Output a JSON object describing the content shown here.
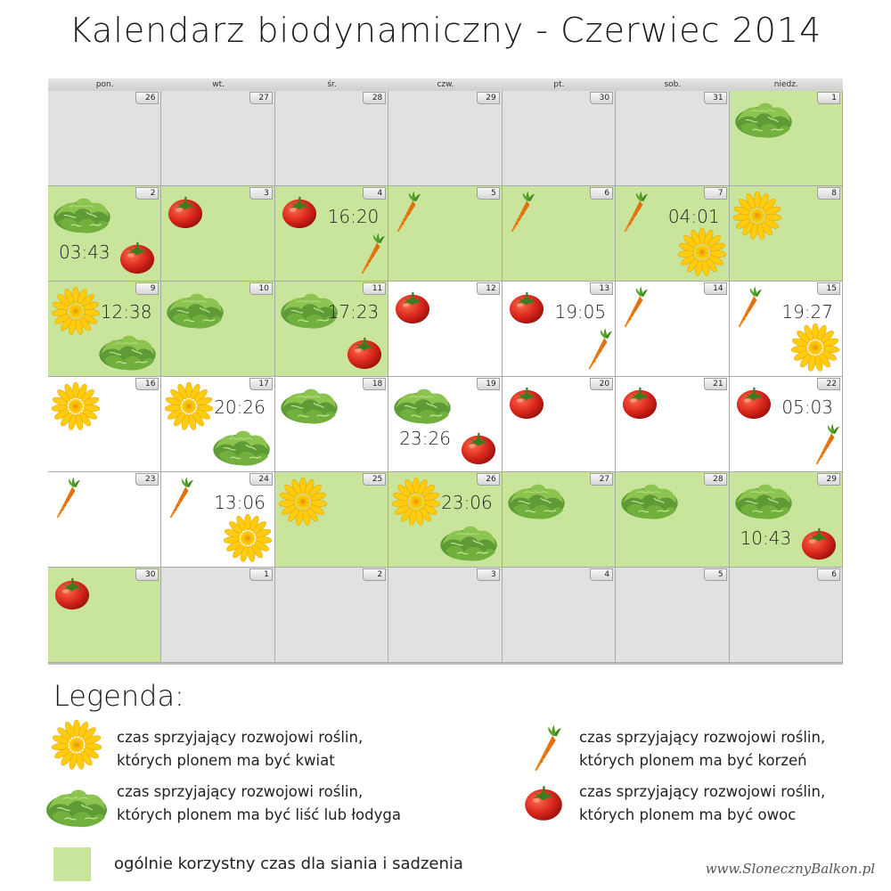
{
  "title": "Kalendarz biodynamiczny - Czerwiec 2014",
  "colors": {
    "green": "#c8e59b",
    "grey": "#e1e1e1",
    "white": "#ffffff"
  },
  "weekdays": [
    "pon.",
    "wt.",
    "śr.",
    "czw.",
    "pt.",
    "sob.",
    "niedz."
  ],
  "weeks": [
    [
      {
        "day": "26",
        "bg": "grey",
        "icons": [],
        "time": ""
      },
      {
        "day": "27",
        "bg": "grey",
        "icons": [],
        "time": ""
      },
      {
        "day": "28",
        "bg": "grey",
        "icons": [],
        "time": ""
      },
      {
        "day": "29",
        "bg": "grey",
        "icons": [],
        "time": ""
      },
      {
        "day": "30",
        "bg": "grey",
        "icons": [],
        "time": ""
      },
      {
        "day": "31",
        "bg": "grey",
        "icons": [],
        "time": ""
      },
      {
        "day": "1",
        "bg": "green",
        "icons": [
          "lettuce-icon"
        ],
        "time": ""
      }
    ],
    [
      {
        "day": "2",
        "bg": "green",
        "icons": [
          "lettuce-icon",
          "tomato-icon"
        ],
        "time": "03:43"
      },
      {
        "day": "3",
        "bg": "green",
        "icons": [
          "tomato-icon"
        ],
        "time": ""
      },
      {
        "day": "4",
        "bg": "green",
        "icons": [
          "tomato-icon",
          "carrot-icon"
        ],
        "time": "16:20"
      },
      {
        "day": "5",
        "bg": "green",
        "icons": [
          "carrot-icon"
        ],
        "time": ""
      },
      {
        "day": "6",
        "bg": "green",
        "icons": [
          "carrot-icon"
        ],
        "time": ""
      },
      {
        "day": "7",
        "bg": "green",
        "icons": [
          "carrot-icon",
          "flower-icon"
        ],
        "time": "04:01"
      },
      {
        "day": "8",
        "bg": "green",
        "icons": [
          "flower-icon"
        ],
        "time": ""
      }
    ],
    [
      {
        "day": "9",
        "bg": "green",
        "icons": [
          "flower-icon",
          "lettuce-icon"
        ],
        "time": "12:38"
      },
      {
        "day": "10",
        "bg": "green",
        "icons": [
          "lettuce-icon"
        ],
        "time": ""
      },
      {
        "day": "11",
        "bg": "green",
        "icons": [
          "lettuce-icon",
          "tomato-icon"
        ],
        "time": "17:23"
      },
      {
        "day": "12",
        "bg": "white",
        "icons": [
          "tomato-icon"
        ],
        "time": ""
      },
      {
        "day": "13",
        "bg": "white",
        "icons": [
          "tomato-icon",
          "carrot-icon"
        ],
        "time": "19:05"
      },
      {
        "day": "14",
        "bg": "white",
        "icons": [
          "carrot-icon"
        ],
        "time": ""
      },
      {
        "day": "15",
        "bg": "white",
        "icons": [
          "carrot-icon",
          "flower-icon"
        ],
        "time": "19:27"
      }
    ],
    [
      {
        "day": "16",
        "bg": "white",
        "icons": [
          "flower-icon"
        ],
        "time": ""
      },
      {
        "day": "17",
        "bg": "white",
        "icons": [
          "flower-icon",
          "lettuce-icon"
        ],
        "time": "20:26"
      },
      {
        "day": "18",
        "bg": "white",
        "icons": [
          "lettuce-icon"
        ],
        "time": ""
      },
      {
        "day": "19",
        "bg": "white",
        "icons": [
          "lettuce-icon",
          "tomato-icon"
        ],
        "time": "23:26"
      },
      {
        "day": "20",
        "bg": "white",
        "icons": [
          "tomato-icon"
        ],
        "time": ""
      },
      {
        "day": "21",
        "bg": "white",
        "icons": [
          "tomato-icon"
        ],
        "time": ""
      },
      {
        "day": "22",
        "bg": "white",
        "icons": [
          "tomato-icon",
          "carrot-icon"
        ],
        "time": "05:03"
      }
    ],
    [
      {
        "day": "23",
        "bg": "white",
        "icons": [
          "carrot-icon"
        ],
        "time": ""
      },
      {
        "day": "24",
        "bg": "white",
        "icons": [
          "carrot-icon",
          "flower-icon"
        ],
        "time": "13:06"
      },
      {
        "day": "25",
        "bg": "green",
        "icons": [
          "flower-icon"
        ],
        "time": ""
      },
      {
        "day": "26",
        "bg": "green",
        "icons": [
          "flower-icon",
          "lettuce-icon"
        ],
        "time": "23:06"
      },
      {
        "day": "27",
        "bg": "green",
        "icons": [
          "lettuce-icon"
        ],
        "time": ""
      },
      {
        "day": "28",
        "bg": "green",
        "icons": [
          "lettuce-icon"
        ],
        "time": ""
      },
      {
        "day": "29",
        "bg": "green",
        "icons": [
          "lettuce-icon",
          "tomato-icon"
        ],
        "time": "10:43"
      }
    ],
    [
      {
        "day": "30",
        "bg": "green",
        "icons": [
          "tomato-icon"
        ],
        "time": ""
      },
      {
        "day": "1",
        "bg": "grey",
        "icons": [],
        "time": ""
      },
      {
        "day": "2",
        "bg": "grey",
        "icons": [],
        "time": ""
      },
      {
        "day": "3",
        "bg": "grey",
        "icons": [],
        "time": ""
      },
      {
        "day": "4",
        "bg": "grey",
        "icons": [],
        "time": ""
      },
      {
        "day": "5",
        "bg": "grey",
        "icons": [],
        "time": ""
      },
      {
        "day": "6",
        "bg": "grey",
        "icons": [],
        "time": ""
      }
    ]
  ],
  "legend": {
    "title": "Legenda:",
    "flower": "czas sprzyjający rozwojowi roślin,\nktórych plonem ma być kwiat",
    "lettuce": "czas sprzyjający rozwojowi roślin,\nktórych plonem ma być liść lub łodyga",
    "carrot": "czas sprzyjający rozwojowi roślin,\nktórych plonem ma być korzeń",
    "tomato": "czas sprzyjający rozwojowi roślin,\nktórych plonem ma być owoc",
    "green_box": "ogólnie korzystny czas dla siania i sadzenia"
  },
  "footer": "www.SlonecznyBalkon.pl"
}
